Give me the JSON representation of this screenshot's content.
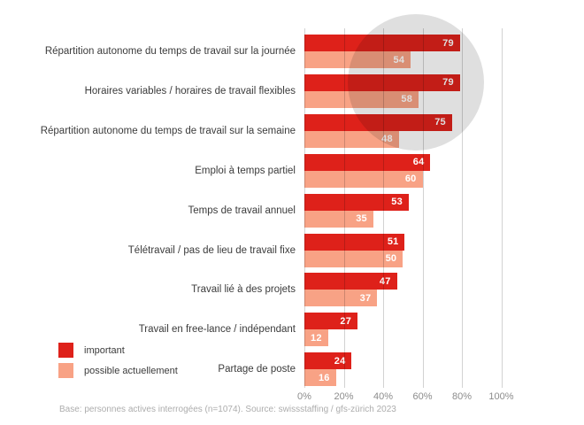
{
  "chart_data": {
    "type": "bar",
    "orientation": "horizontal",
    "title": "",
    "categories": [
      "Répartition autonome du temps de travail sur la journée",
      "Horaires variables / horaires de travail flexibles",
      "Répartition autonome du temps de travail sur la semaine",
      "Emploi à temps partiel",
      "Temps de travail annuel",
      "Télétravail / pas de lieu de travail fixe",
      "Travail lié à des projets",
      "Travail en free-lance / indépendant",
      "Partage de poste"
    ],
    "series": [
      {
        "name": "important",
        "color": "#de211a",
        "values": [
          79,
          79,
          75,
          64,
          53,
          51,
          47,
          27,
          24
        ]
      },
      {
        "name": "possible actuellement",
        "color": "#f8a285",
        "values": [
          54,
          58,
          48,
          60,
          35,
          50,
          37,
          12,
          16
        ]
      }
    ],
    "xlim": [
      0,
      100
    ],
    "x_ticks": [
      "0%",
      "20%",
      "40%",
      "60%",
      "80%",
      "100%"
    ],
    "grid": true,
    "value_labels": "inside-end",
    "legend_position": "bottom-left"
  },
  "footer": {
    "text": "Base: personnes actives interrogées (n=1074). Source: swissstaffing / gfs-zürich 2023"
  },
  "style": {
    "value_label_color": "#ffffff",
    "grid_color": "#d2d2d2",
    "circle_color": "#dfdfdf",
    "axis_label_color": "#8c8c8c",
    "category_label_color": "#3b3b3b",
    "footer_color": "#adadad"
  }
}
